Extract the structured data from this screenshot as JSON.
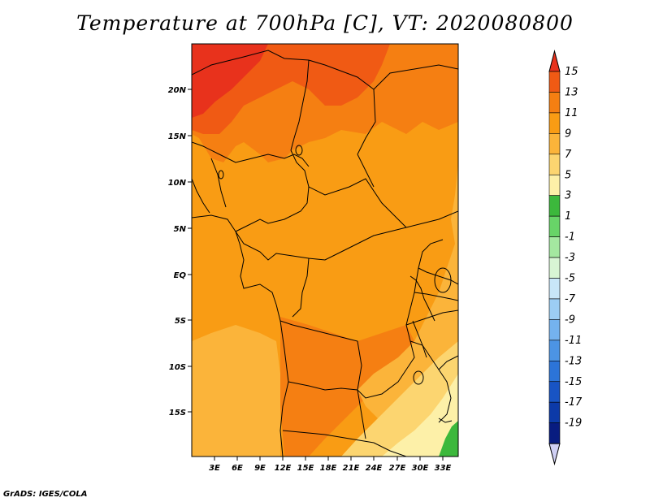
{
  "title": "Temperature at 700hPa [C], VT: 2020080800",
  "credit": "GrADS: IGES/COLA",
  "lat_labels": [
    "20N",
    "15N",
    "10N",
    "5N",
    "EQ",
    "5S",
    "10S",
    "15S"
  ],
  "lon_labels": [
    "3E",
    "6E",
    "9E",
    "12E",
    "15E",
    "18E",
    "21E",
    "24E",
    "27E",
    "30E",
    "33E"
  ],
  "colorbar": {
    "labels": [
      "15",
      "13",
      "11",
      "9",
      "7",
      "5",
      "3",
      "1",
      "-1",
      "-3",
      "-5",
      "-7",
      "-9",
      "-11",
      "-13",
      "-15",
      "-17",
      "-19"
    ],
    "colors": [
      "#e8321c",
      "#f05a14",
      "#f57f12",
      "#f99c14",
      "#fbb43a",
      "#fcd570",
      "#fdf0a8",
      "#3cb83c",
      "#68d468",
      "#a4e8a0",
      "#d8f5d4",
      "#c8e6f8",
      "#9ccdf4",
      "#74b2ee",
      "#4c94e4",
      "#2c74d8",
      "#1854c4",
      "#0c3aa8",
      "#081c80",
      "#d0d0f4"
    ]
  },
  "regions": {
    "hot_north": "#e8321c",
    "warm_north": "#f05a14",
    "mid": "#f57f12",
    "base": "#f99c14",
    "cool": "#fbb43a",
    "cooler": "#fcd570",
    "coolest": "#fdf0a8",
    "green": "#3cb83c"
  }
}
